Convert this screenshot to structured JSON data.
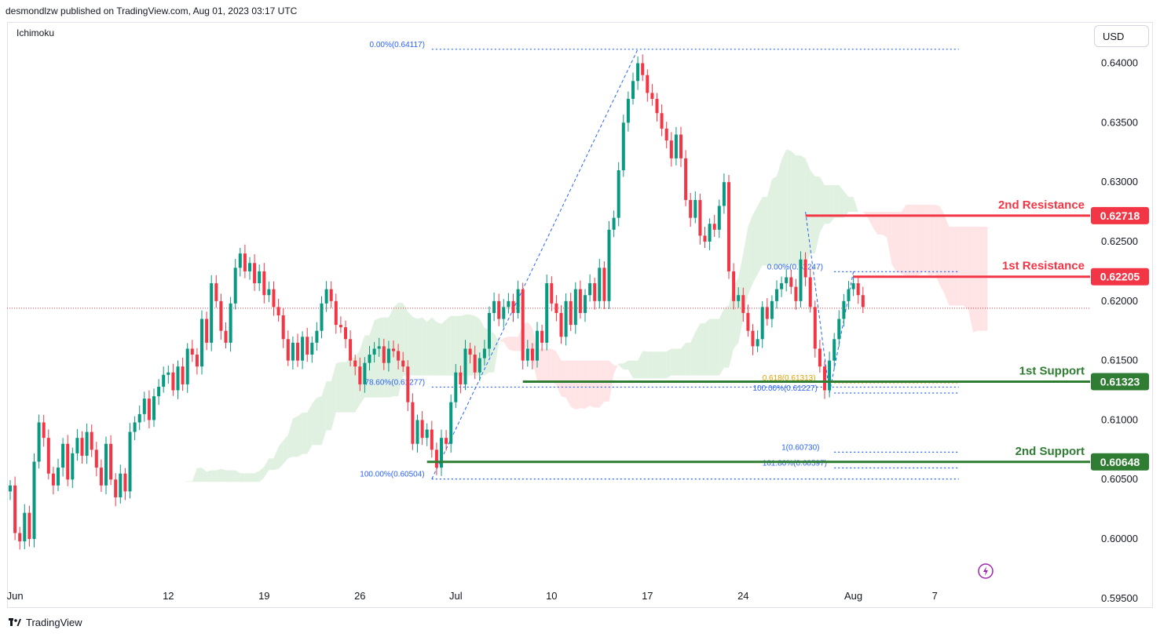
{
  "header": {
    "published": "desmondlzw published on TradingView.com, Aug 01, 2023 03:17 UTC",
    "study": "Ichimoku",
    "currency_button": "USD"
  },
  "footer": {
    "brand": "TradingView"
  },
  "colors": {
    "up": "#089981",
    "down": "#f23645",
    "resistance": "#f23645",
    "support": "#2e7d32",
    "fib": "#2962ff",
    "fib_text": "#2962ff",
    "fib_618": "#e0a000",
    "cloud_bull": "#c8e6c9",
    "cloud_bear": "#ffcdd2",
    "price_line": "#f23645",
    "alert_icon": "#9c27b0"
  },
  "chart_data": {
    "type": "candlestick",
    "ylim": [
      0.5942,
      0.6434
    ],
    "y_ticks": [
      "0.64000",
      "0.63500",
      "0.63000",
      "0.62500",
      "0.62000",
      "0.61500",
      "0.61000",
      "0.60500",
      "0.60000",
      "0.59500"
    ],
    "x_ticks": [
      {
        "label": "Jun",
        "bar": 1
      },
      {
        "label": "12",
        "bar": 33
      },
      {
        "label": "19",
        "bar": 53
      },
      {
        "label": "26",
        "bar": 73
      },
      {
        "label": "Jul",
        "bar": 93
      },
      {
        "label": "10",
        "bar": 113
      },
      {
        "label": "17",
        "bar": 133
      },
      {
        "label": "24",
        "bar": 153
      },
      {
        "label": "Aug",
        "bar": 176
      },
      {
        "label": "7",
        "bar": 193
      }
    ],
    "last_price": 0.6194,
    "levels": [
      {
        "name": "2nd Resistance",
        "value": 0.62718,
        "label": "0.62718",
        "kind": "resistance",
        "from_bar": 166
      },
      {
        "name": "1st Resistance",
        "value": 0.62205,
        "label": "0.62205",
        "kind": "resistance",
        "from_bar": 176
      },
      {
        "name": "1st Support",
        "value": 0.61323,
        "label": "0.61323",
        "kind": "support",
        "from_bar": 107
      },
      {
        "name": "2nd Support",
        "value": 0.60648,
        "label": "0.60648",
        "kind": "support",
        "from_bar": 87
      }
    ],
    "fib_lines": [
      {
        "text": "0.00%(0.64117)",
        "value": 0.64117,
        "from_bar": 88,
        "to_bar": 198,
        "text_bar": 75
      },
      {
        "text": "78.60%(0.61277)",
        "value": 0.61277,
        "from_bar": 88,
        "to_bar": 198,
        "text_bar": 74
      },
      {
        "text": "100.00%(0.60504)",
        "value": 0.60504,
        "from_bar": 88,
        "to_bar": 198,
        "text_bar": 73
      },
      {
        "text": "0.00%(0.62247)",
        "value": 0.62247,
        "from_bar": 172,
        "to_bar": 198,
        "text_bar": 158
      },
      {
        "text": "0.618(0.61313)",
        "value": 0.61313,
        "from_bar": 172,
        "to_bar": 198,
        "text_bar": 157
      },
      {
        "text": "100.00%(0.61227)",
        "value": 0.61227,
        "from_bar": 172,
        "to_bar": 198,
        "text_bar": 155
      },
      {
        "text": "1(0.60730)",
        "value": 0.6073,
        "from_bar": 172,
        "to_bar": 198,
        "text_bar": 161
      },
      {
        "text": "161.80%(0.60597)",
        "value": 0.60597,
        "from_bar": 172,
        "to_bar": 198,
        "text_bar": 157
      }
    ],
    "trend_lines": [
      {
        "from_bar": 88,
        "from_value": 0.60504,
        "to_bar": 131,
        "to_value": 0.64117
      },
      {
        "from_bar": 171,
        "from_value": 0.61227,
        "to_bar": 176,
        "to_value": 0.62247
      },
      {
        "from_bar": 166,
        "from_value": 0.6275,
        "to_bar": 171,
        "to_value": 0.61227
      }
    ],
    "closes": [
      0.6045,
      0.6005,
      0.5998,
      0.6022,
      0.6,
      0.6065,
      0.6098,
      0.6085,
      0.6055,
      0.6045,
      0.606,
      0.608,
      0.605,
      0.6072,
      0.6085,
      0.607,
      0.609,
      0.6075,
      0.606,
      0.6045,
      0.608,
      0.605,
      0.6035,
      0.6055,
      0.604,
      0.609,
      0.6098,
      0.6105,
      0.6118,
      0.61,
      0.612,
      0.6128,
      0.6138,
      0.614,
      0.6125,
      0.6145,
      0.613,
      0.616,
      0.6155,
      0.6145,
      0.6185,
      0.6165,
      0.6215,
      0.62,
      0.6175,
      0.6165,
      0.6198,
      0.6228,
      0.624,
      0.6225,
      0.6232,
      0.6215,
      0.6225,
      0.6205,
      0.621,
      0.6195,
      0.6188,
      0.6168,
      0.615,
      0.6165,
      0.615,
      0.617,
      0.6155,
      0.6165,
      0.6175,
      0.6198,
      0.621,
      0.62,
      0.618,
      0.6178,
      0.6168,
      0.615,
      0.6145,
      0.613,
      0.6148,
      0.6155,
      0.616,
      0.6162,
      0.6148,
      0.616,
      0.6158,
      0.615,
      0.6145,
      0.6115,
      0.608,
      0.61,
      0.6085,
      0.6092,
      0.6075,
      0.606,
      0.6085,
      0.608,
      0.6115,
      0.614,
      0.613,
      0.616,
      0.6155,
      0.614,
      0.6152,
      0.616,
      0.619,
      0.62,
      0.6185,
      0.6195,
      0.62,
      0.619,
      0.621,
      0.615,
      0.616,
      0.615,
      0.6175,
      0.6165,
      0.6215,
      0.6198,
      0.619,
      0.617,
      0.62,
      0.618,
      0.621,
      0.619,
      0.6205,
      0.6215,
      0.62,
      0.6228,
      0.62,
      0.626,
      0.627,
      0.631,
      0.635,
      0.637,
      0.6385,
      0.64,
      0.639,
      0.6375,
      0.637,
      0.6358,
      0.6345,
      0.6335,
      0.632,
      0.634,
      0.632,
      0.6285,
      0.627,
      0.6285,
      0.6255,
      0.625,
      0.6265,
      0.626,
      0.628,
      0.63,
      0.6225,
      0.62,
      0.6205,
      0.619,
      0.6175,
      0.6162,
      0.6168,
      0.6195,
      0.6185,
      0.62,
      0.621,
      0.6215,
      0.622,
      0.6212,
      0.62,
      0.6235,
      0.622,
      0.6195,
      0.616,
      0.6145,
      0.6125,
      0.615,
      0.6168,
      0.6185,
      0.62,
      0.621,
      0.6215,
      0.6205,
      0.6195
    ]
  }
}
